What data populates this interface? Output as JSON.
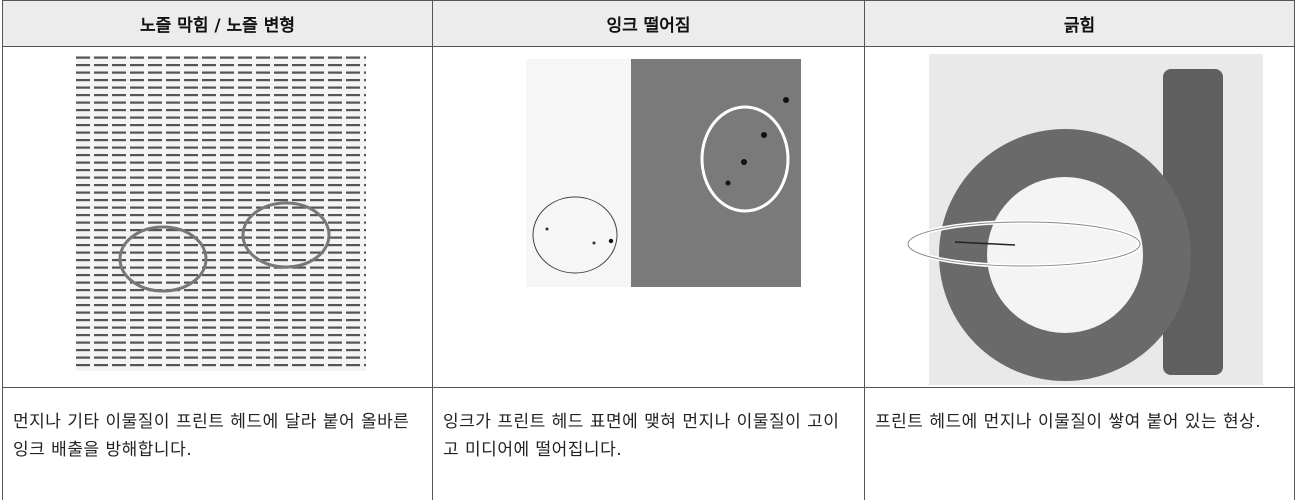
{
  "table": {
    "headers": [
      "노즐 막힘 / 노즐 변형",
      "잉크 떨어짐",
      "긁힘"
    ],
    "rows": [
      [
        "먼지나 기타 이물질이 프린트 헤드에 달라 붙어 올바른 잉크 배출을 방해합니다.",
        "잉크가 프린트 헤드 표면에 맺혀 먼지나 이물질이 고이고 미디어에 떨어집니다.",
        "프린트 헤드에 먼지나 이물질이 쌓여 붙어 있는 현상."
      ]
    ]
  }
}
